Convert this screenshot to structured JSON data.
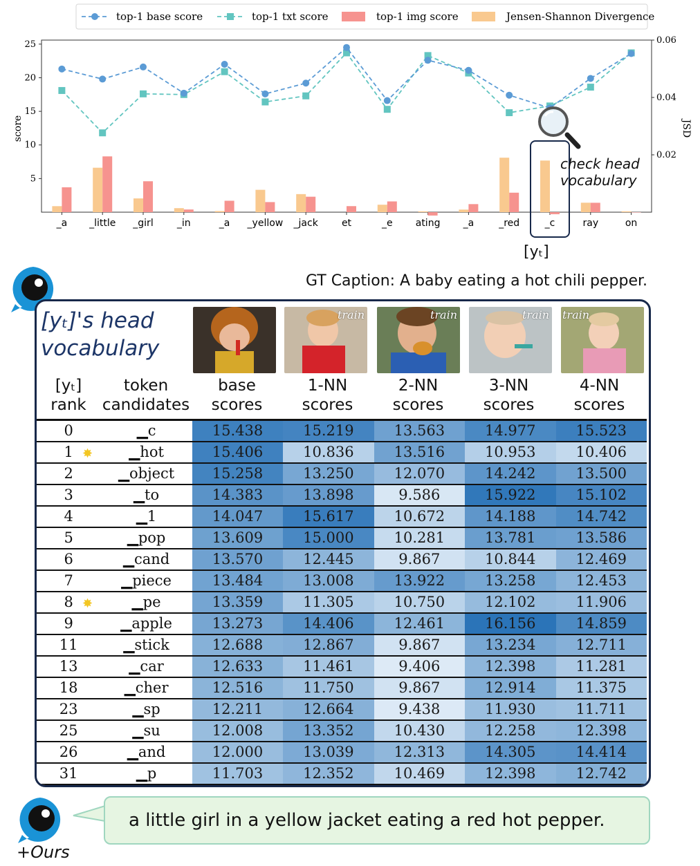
{
  "chart_data": {
    "type": "line",
    "legend": [
      "top-1 base score",
      "top-1 txt score",
      "top-1 img score",
      "Jensen-Shannon Divergence"
    ],
    "legend_position": "top",
    "categories": [
      "_a",
      "_little",
      "_girl",
      "_in",
      "_a",
      "_yellow",
      "_jack",
      "et",
      "_e",
      "ating",
      "_a",
      "_red",
      "_c",
      "ray",
      "on"
    ],
    "series": [
      {
        "name": "top-1 base score",
        "kind": "line",
        "axis": "left",
        "color": "#5b9bd5",
        "values": [
          21.3,
          19.8,
          21.6,
          17.7,
          22.0,
          17.6,
          19.2,
          24.5,
          16.6,
          22.6,
          21.1,
          17.4,
          15.5,
          19.9,
          23.6
        ]
      },
      {
        "name": "top-1 txt score",
        "kind": "line",
        "axis": "left",
        "color": "#62c5c0",
        "values": [
          18.1,
          11.8,
          17.6,
          17.5,
          20.9,
          16.4,
          17.3,
          23.7,
          15.3,
          23.3,
          20.7,
          14.8,
          15.8,
          18.6,
          23.7
        ]
      },
      {
        "name": "top-1 img score",
        "kind": "bar",
        "axis": "left",
        "color": "#f6938f",
        "values": [
          3.7,
          8.3,
          4.6,
          0.4,
          1.7,
          1.5,
          2.3,
          0.9,
          1.6,
          -0.5,
          1.2,
          2.9,
          -0.3,
          1.4,
          0.0
        ]
      },
      {
        "name": "Jensen-Shannon Divergence",
        "kind": "bar",
        "axis": "right",
        "color": "#f9c98f",
        "values": [
          0.0021,
          0.0155,
          0.0048,
          0.0014,
          0.0004,
          0.0078,
          0.0063,
          0.0,
          0.0026,
          0.0003,
          0.0009,
          0.019,
          0.018,
          0.0033,
          0.0003
        ]
      }
    ],
    "ylabel": "score",
    "ylabel_right": "JSD",
    "y_ticks": [
      5,
      10,
      15,
      20,
      25
    ],
    "y2_ticks": [
      "0.02",
      "0.04",
      "0.06"
    ],
    "ylim": [
      0,
      25.6
    ],
    "y2lim": [
      0,
      0.06
    ],
    "grid": false,
    "highlight_category": "_c",
    "annotation": "check head\nvocabulary"
  },
  "yt_label": "[yₜ]",
  "caption": "GT Caption: A baby eating a hot chili pepper.",
  "head_title_line1": "[yₜ]'s head",
  "head_title_line2": "vocabulary",
  "photo_labels": [
    "",
    "train",
    "train",
    "train",
    "train"
  ],
  "columns": {
    "rank": [
      "[yₜ]",
      "rank"
    ],
    "token": [
      "token",
      "candidates"
    ],
    "base": [
      "base",
      "scores"
    ],
    "nn1": [
      "1-NN",
      "scores"
    ],
    "nn2": [
      "2-NN",
      "scores"
    ],
    "nn3": [
      "3-NN",
      "scores"
    ],
    "nn4": [
      "4-NN",
      "scores"
    ]
  },
  "rows": [
    {
      "rank": "0",
      "token": "▁c",
      "star": false,
      "scores": [
        "15.438",
        "15.219",
        "13.563",
        "14.977",
        "15.523"
      ]
    },
    {
      "rank": "1",
      "token": "▁hot",
      "star": true,
      "scores": [
        "15.406",
        "10.836",
        "13.516",
        "10.953",
        "10.406"
      ]
    },
    {
      "rank": "2",
      "token": "▁object",
      "star": false,
      "scores": [
        "15.258",
        "13.250",
        "12.070",
        "14.242",
        "13.500"
      ]
    },
    {
      "rank": "3",
      "token": "▁to",
      "star": false,
      "scores": [
        "14.383",
        "13.898",
        "9.586",
        "15.922",
        "15.102"
      ]
    },
    {
      "rank": "4",
      "token": "▁1",
      "star": false,
      "scores": [
        "14.047",
        "15.617",
        "10.672",
        "14.188",
        "14.742"
      ]
    },
    {
      "rank": "5",
      "token": "▁pop",
      "star": false,
      "scores": [
        "13.609",
        "15.000",
        "10.281",
        "13.781",
        "13.586"
      ]
    },
    {
      "rank": "6",
      "token": "▁cand",
      "star": false,
      "scores": [
        "13.570",
        "12.445",
        "9.867",
        "10.844",
        "12.469"
      ]
    },
    {
      "rank": "7",
      "token": "▁piece",
      "star": false,
      "scores": [
        "13.484",
        "13.008",
        "13.922",
        "13.258",
        "12.453"
      ]
    },
    {
      "rank": "8",
      "token": "▁pe",
      "star": true,
      "scores": [
        "13.359",
        "11.305",
        "10.750",
        "12.102",
        "11.906"
      ]
    },
    {
      "rank": "9",
      "token": "▁apple",
      "star": false,
      "scores": [
        "13.273",
        "14.406",
        "12.461",
        "16.156",
        "14.859"
      ]
    },
    {
      "rank": "11",
      "token": "▁stick",
      "star": false,
      "scores": [
        "12.688",
        "12.867",
        "9.867",
        "13.234",
        "12.711"
      ]
    },
    {
      "rank": "13",
      "token": "▁car",
      "star": false,
      "scores": [
        "12.633",
        "11.461",
        "9.406",
        "12.398",
        "11.281"
      ]
    },
    {
      "rank": "18",
      "token": "▁cher",
      "star": false,
      "scores": [
        "12.516",
        "11.750",
        "9.867",
        "12.914",
        "11.375"
      ]
    },
    {
      "rank": "23",
      "token": "▁sp",
      "star": false,
      "scores": [
        "12.211",
        "12.664",
        "9.438",
        "11.930",
        "11.711"
      ]
    },
    {
      "rank": "25",
      "token": "▁su",
      "star": false,
      "scores": [
        "12.008",
        "13.352",
        "10.430",
        "12.258",
        "12.398"
      ]
    },
    {
      "rank": "26",
      "token": "▁and",
      "star": false,
      "scores": [
        "12.000",
        "13.039",
        "12.313",
        "14.305",
        "14.414"
      ]
    },
    {
      "rank": "31",
      "token": "▁p",
      "star": false,
      "scores": [
        "11.703",
        "12.352",
        "10.469",
        "12.398",
        "12.742"
      ]
    }
  ],
  "output_caption": "a little girl in a yellow jacket eating a red hot pepper.",
  "ours_label": "+Ours",
  "icons": [
    "magnifier-icon",
    "eye-bubble-icon",
    "star-icon"
  ]
}
